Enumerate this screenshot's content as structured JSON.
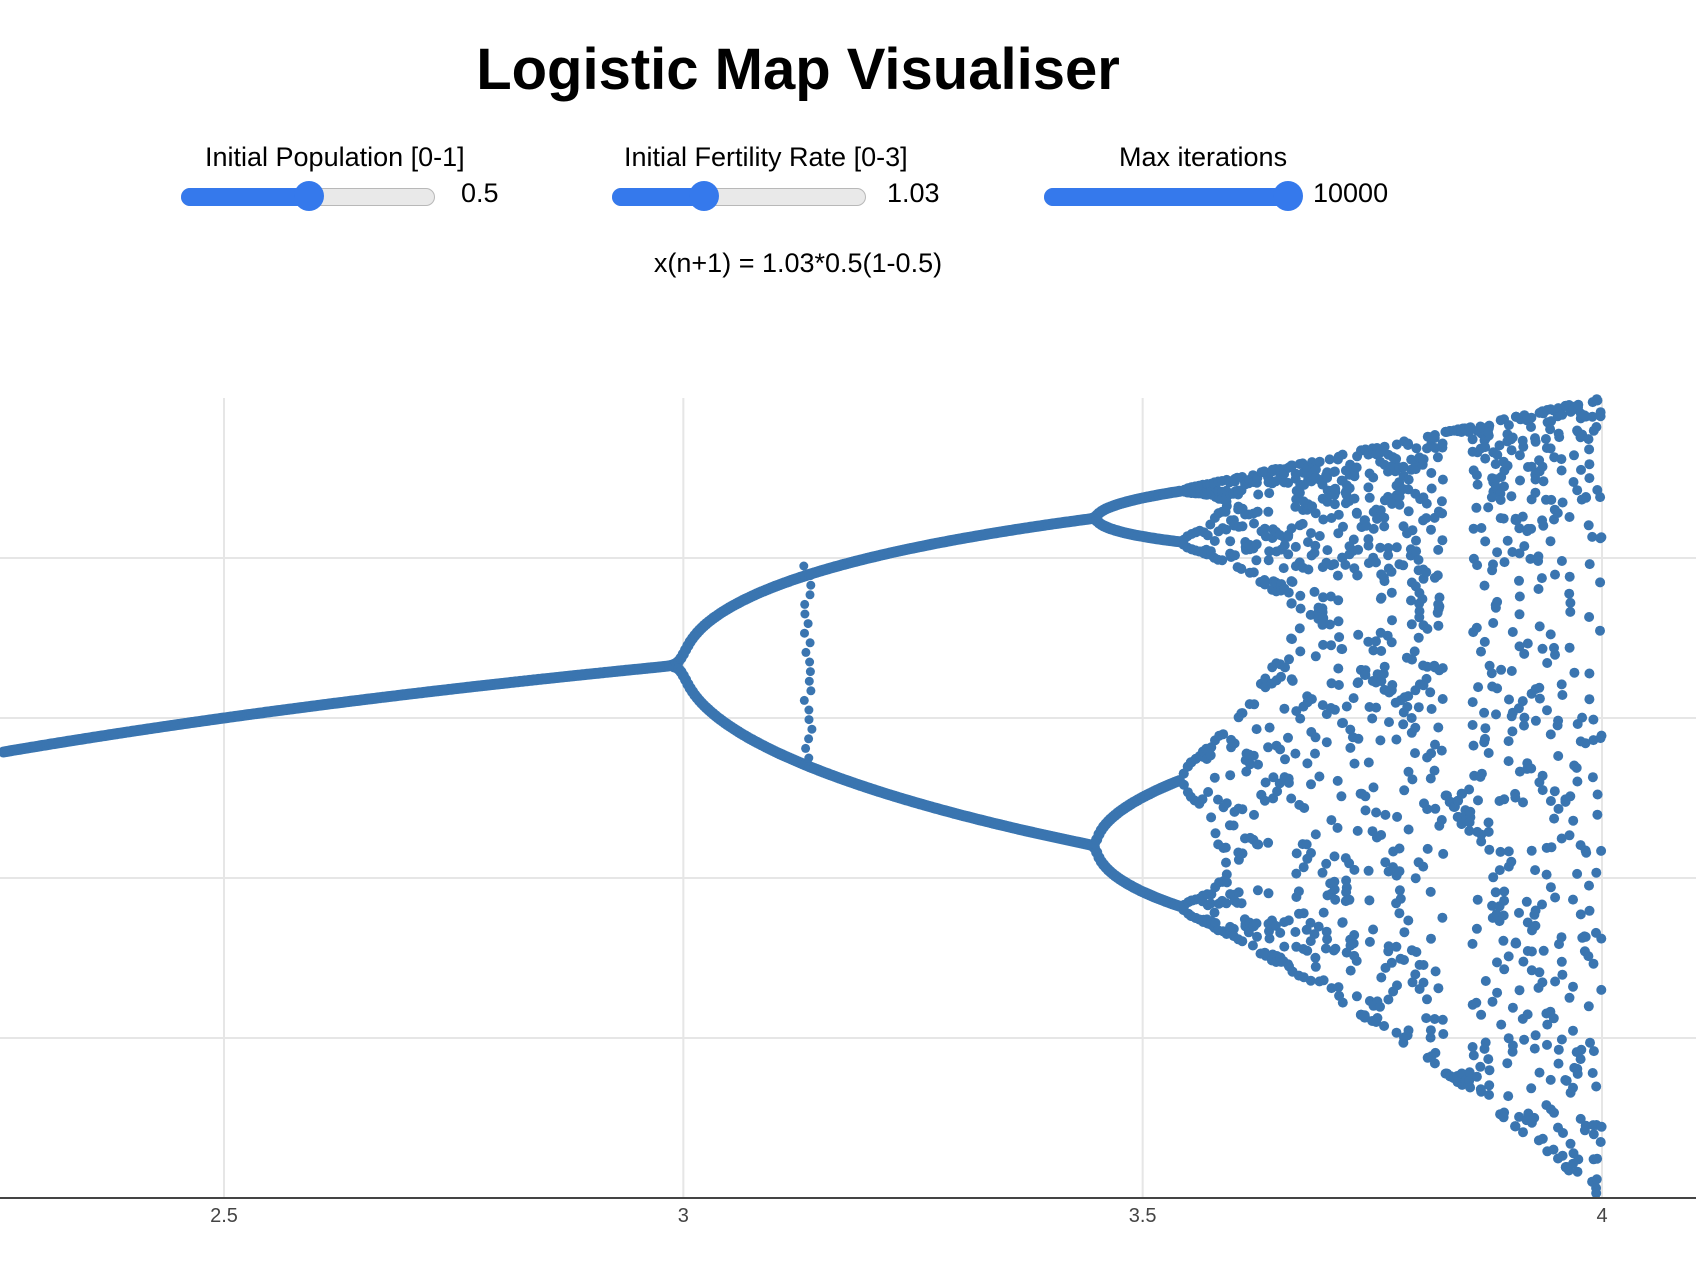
{
  "app": {
    "title": "Logistic Map Visualiser"
  },
  "controls": {
    "initial_population": {
      "label": "Initial Population [0-1]",
      "value_text": "0.5",
      "fraction": 0.5
    },
    "initial_fertility_rate": {
      "label": "Initial Fertility Rate [0-3]",
      "value_text": "1.03",
      "fraction": 0.36
    },
    "max_iterations": {
      "label": "Max iterations",
      "value_text": "10000",
      "fraction": 1.0
    }
  },
  "equation": "x(n+1) = 1.03*0.5(1-0.5)",
  "colors": {
    "accent": "#3579ec",
    "points": "#3a75b0",
    "grid": "#e6e6e6",
    "axis": "#444444"
  },
  "chart_data": {
    "type": "scatter",
    "title": "",
    "xlabel": "",
    "ylabel": "",
    "x_tick_labels": [
      "2.5",
      "3",
      "3.5",
      "4"
    ],
    "x_ticks": [
      2.5,
      3,
      3.5,
      4
    ],
    "xlim": [
      2.26,
      4.1
    ],
    "ylim": [
      0,
      1
    ],
    "grid": true,
    "description_series": [
      {
        "kind": "fixed-point branch",
        "x": [
          2.26,
          2.5,
          3.0,
          3.135
        ],
        "y": [
          0.558,
          0.6,
          0.667,
          0.681
        ]
      },
      {
        "kind": "period-2 upper branch",
        "x": [
          3.145,
          3.3,
          3.45,
          3.545
        ],
        "y": [
          0.785,
          0.823,
          0.853,
          0.866
        ]
      },
      {
        "kind": "period-2 lower branch",
        "x": [
          3.145,
          3.3,
          3.45,
          3.545
        ],
        "y": [
          0.535,
          0.479,
          0.44,
          0.418
        ]
      }
    ],
    "chaos_region": {
      "x_start": 3.545,
      "x_end": 4.0,
      "y_min_at_end": 0.0,
      "y_max_at_end": 1.0
    }
  }
}
